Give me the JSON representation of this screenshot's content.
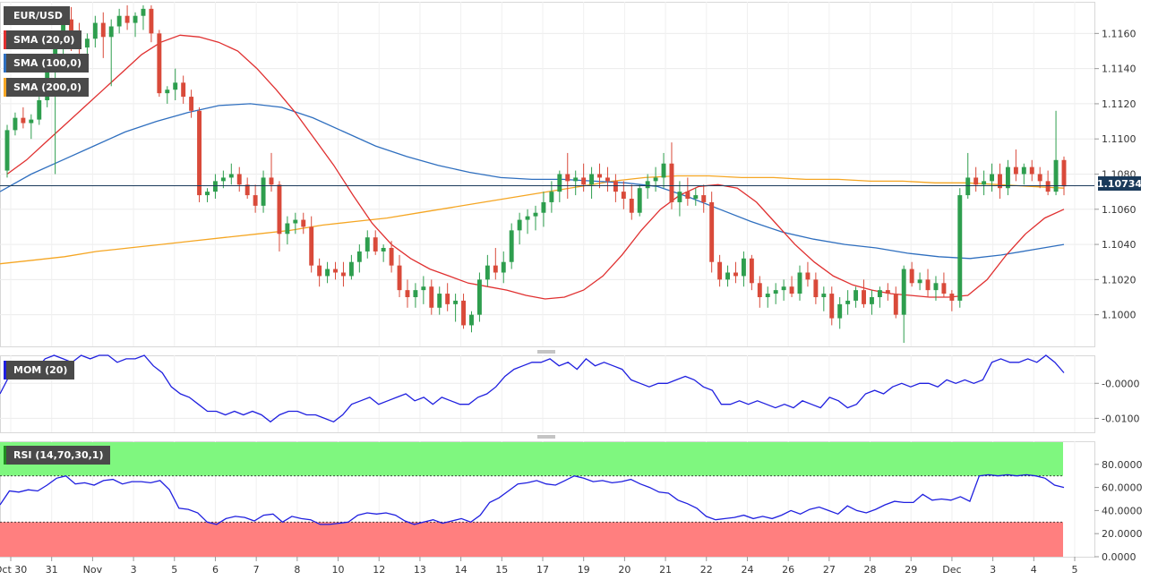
{
  "chart_data": [
    {
      "type": "candlestick",
      "title": "EUR/USD",
      "indicators": [
        {
          "name": "SMA (20,0)",
          "color": "#e03030"
        },
        {
          "name": "SMA (100,0)",
          "color": "#2f6fbf"
        },
        {
          "name": "SMA (200,0)",
          "color": "#f5a623"
        }
      ],
      "current_price": "1.10734",
      "ylim": [
        1.0982,
        1.1178
      ],
      "y_ticks": [
        "1.1160",
        "1.1140",
        "1.1120",
        "1.1100",
        "1.1080",
        "1.1060",
        "1.1040",
        "1.1020",
        "1.1000"
      ],
      "y_tick_values": [
        1.116,
        1.114,
        1.112,
        1.11,
        1.108,
        1.106,
        1.104,
        1.102,
        1.1
      ],
      "x_ticks": [
        "Oct 30",
        "31",
        "Nov",
        "3",
        "5",
        "6",
        "7",
        "8",
        "10",
        "12",
        "13",
        "14",
        "15",
        "17",
        "19",
        "20",
        "21",
        "22",
        "24",
        "26",
        "27",
        "28",
        "29",
        "Dec",
        "3",
        "4",
        "5"
      ],
      "candles_ohlc": [
        [
          1.1082,
          1.1108,
          1.1078,
          1.1105
        ],
        [
          1.1105,
          1.1115,
          1.1102,
          1.1112
        ],
        [
          1.1112,
          1.1118,
          1.1106,
          1.1109
        ],
        [
          1.1109,
          1.1114,
          1.11,
          1.1111
        ],
        [
          1.1111,
          1.1125,
          1.1108,
          1.1122
        ],
        [
          1.1122,
          1.114,
          1.1118,
          1.1138
        ],
        [
          1.1138,
          1.116,
          1.108,
          1.1152
        ],
        [
          1.1152,
          1.1172,
          1.1148,
          1.1168
        ],
        [
          1.1168,
          1.1175,
          1.115,
          1.1156
        ],
        [
          1.1156,
          1.1166,
          1.1148,
          1.1152
        ],
        [
          1.1152,
          1.116,
          1.1146,
          1.1157
        ],
        [
          1.1157,
          1.117,
          1.1152,
          1.1166
        ],
        [
          1.1166,
          1.1172,
          1.1146,
          1.1158
        ],
        [
          1.1158,
          1.1168,
          1.113,
          1.1164
        ],
        [
          1.1164,
          1.1174,
          1.116,
          1.117
        ],
        [
          1.117,
          1.1176,
          1.1162,
          1.1166
        ],
        [
          1.1166,
          1.1172,
          1.1158,
          1.117
        ],
        [
          1.117,
          1.1176,
          1.1162,
          1.1174
        ],
        [
          1.1174,
          1.1176,
          1.1155,
          1.116
        ],
        [
          1.116,
          1.1162,
          1.1124,
          1.1126
        ],
        [
          1.1126,
          1.113,
          1.112,
          1.1128
        ],
        [
          1.1128,
          1.114,
          1.1122,
          1.1132
        ],
        [
          1.1132,
          1.1136,
          1.112,
          1.1124
        ],
        [
          1.1124,
          1.1128,
          1.1112,
          1.1116
        ],
        [
          1.1116,
          1.1118,
          1.1064,
          1.1068
        ],
        [
          1.1068,
          1.1072,
          1.1064,
          1.107
        ],
        [
          1.107,
          1.108,
          1.1066,
          1.1076
        ],
        [
          1.1076,
          1.1082,
          1.1072,
          1.1078
        ],
        [
          1.1078,
          1.1086,
          1.1074,
          1.108
        ],
        [
          1.108,
          1.1084,
          1.107,
          1.1074
        ],
        [
          1.1074,
          1.1078,
          1.1066,
          1.1068
        ],
        [
          1.1068,
          1.1074,
          1.1058,
          1.1062
        ],
        [
          1.1062,
          1.1082,
          1.1058,
          1.1078
        ],
        [
          1.1078,
          1.1092,
          1.107,
          1.1074
        ],
        [
          1.1074,
          1.1076,
          1.1036,
          1.1046
        ],
        [
          1.1046,
          1.1056,
          1.104,
          1.1052
        ],
        [
          1.1052,
          1.1058,
          1.1046,
          1.1054
        ],
        [
          1.1054,
          1.1058,
          1.1046,
          1.105
        ],
        [
          1.105,
          1.1056,
          1.1024,
          1.1028
        ],
        [
          1.1028,
          1.1032,
          1.1016,
          1.1022
        ],
        [
          1.1022,
          1.103,
          1.1018,
          1.1026
        ],
        [
          1.1026,
          1.103,
          1.102,
          1.1024
        ],
        [
          1.1024,
          1.103,
          1.1016,
          1.1022
        ],
        [
          1.1022,
          1.1034,
          1.102,
          1.103
        ],
        [
          1.103,
          1.104,
          1.1024,
          1.1036
        ],
        [
          1.1036,
          1.1048,
          1.1032,
          1.1044
        ],
        [
          1.1044,
          1.1048,
          1.1034,
          1.1036
        ],
        [
          1.1036,
          1.104,
          1.103,
          1.1038
        ],
        [
          1.1038,
          1.1042,
          1.1024,
          1.1028
        ],
        [
          1.1028,
          1.1034,
          1.101,
          1.1014
        ],
        [
          1.1014,
          1.102,
          1.1004,
          1.101
        ],
        [
          1.101,
          1.1018,
          1.1004,
          1.1014
        ],
        [
          1.1014,
          1.1022,
          1.1006,
          1.1016
        ],
        [
          1.1016,
          1.102,
          1.1,
          1.1004
        ],
        [
          1.1004,
          1.1016,
          1.1,
          1.1012
        ],
        [
          1.1012,
          1.1018,
          1.1002,
          1.1006
        ],
        [
          1.1006,
          1.1012,
          1.0996,
          1.1008
        ],
        [
          1.1008,
          1.1012,
          1.0992,
          1.0994
        ],
        [
          1.0994,
          1.1002,
          1.099,
          1.1
        ],
        [
          1.1,
          1.1024,
          1.0996,
          1.102
        ],
        [
          1.102,
          1.1034,
          1.1016,
          1.1028
        ],
        [
          1.1028,
          1.1038,
          1.102,
          1.1024
        ],
        [
          1.1024,
          1.1036,
          1.1018,
          1.103
        ],
        [
          1.103,
          1.1052,
          1.1026,
          1.1048
        ],
        [
          1.1048,
          1.1058,
          1.104,
          1.1054
        ],
        [
          1.1054,
          1.106,
          1.1046,
          1.1056
        ],
        [
          1.1056,
          1.1062,
          1.1048,
          1.1058
        ],
        [
          1.1058,
          1.107,
          1.105,
          1.1064
        ],
        [
          1.1064,
          1.1076,
          1.1058,
          1.107
        ],
        [
          1.107,
          1.1082,
          1.1064,
          1.108
        ],
        [
          1.108,
          1.1092,
          1.1066,
          1.1076
        ],
        [
          1.1076,
          1.1082,
          1.1068,
          1.1078
        ],
        [
          1.1078,
          1.1086,
          1.107,
          1.1074
        ],
        [
          1.1074,
          1.1084,
          1.1066,
          1.108
        ],
        [
          1.108,
          1.1086,
          1.1072,
          1.1078
        ],
        [
          1.1078,
          1.1084,
          1.107,
          1.1076
        ],
        [
          1.1076,
          1.108,
          1.1064,
          1.107
        ],
        [
          1.107,
          1.1076,
          1.106,
          1.1066
        ],
        [
          1.1066,
          1.1074,
          1.1054,
          1.1058
        ],
        [
          1.1058,
          1.1074,
          1.1056,
          1.1072
        ],
        [
          1.1072,
          1.108,
          1.1066,
          1.1076
        ],
        [
          1.1076,
          1.1084,
          1.107,
          1.1078
        ],
        [
          1.1078,
          1.1092,
          1.1072,
          1.1086
        ],
        [
          1.1086,
          1.1098,
          1.106,
          1.1064
        ],
        [
          1.1064,
          1.1076,
          1.1056,
          1.107
        ],
        [
          1.107,
          1.1078,
          1.1062,
          1.1066
        ],
        [
          1.1066,
          1.1072,
          1.1062,
          1.1068
        ],
        [
          1.1068,
          1.1074,
          1.1058,
          1.1064
        ],
        [
          1.1064,
          1.107,
          1.1024,
          1.103
        ],
        [
          1.103,
          1.1034,
          1.1016,
          1.102
        ],
        [
          1.102,
          1.1028,
          1.1016,
          1.1024
        ],
        [
          1.1024,
          1.103,
          1.1018,
          1.1022
        ],
        [
          1.1022,
          1.1036,
          1.1016,
          1.1032
        ],
        [
          1.1032,
          1.1034,
          1.1014,
          1.1018
        ],
        [
          1.1018,
          1.1022,
          1.1004,
          1.101
        ],
        [
          1.101,
          1.1016,
          1.1004,
          1.1012
        ],
        [
          1.1012,
          1.1018,
          1.1006,
          1.1014
        ],
        [
          1.1014,
          1.102,
          1.1008,
          1.1016
        ],
        [
          1.1016,
          1.1022,
          1.101,
          1.1012
        ],
        [
          1.1012,
          1.1028,
          1.1008,
          1.1024
        ],
        [
          1.1024,
          1.103,
          1.1016,
          1.102
        ],
        [
          1.102,
          1.1024,
          1.1006,
          1.101
        ],
        [
          1.101,
          1.1016,
          1.1002,
          1.1012
        ],
        [
          1.1012,
          1.1016,
          1.0994,
          1.0998
        ],
        [
          1.0998,
          1.101,
          1.0992,
          1.1006
        ],
        [
          1.1006,
          1.1014,
          1.1,
          1.1008
        ],
        [
          1.1008,
          1.1016,
          1.1004,
          1.1014
        ],
        [
          1.1014,
          1.102,
          1.1004,
          1.1006
        ],
        [
          1.1006,
          1.1014,
          1.1,
          1.101
        ],
        [
          1.101,
          1.1016,
          1.1004,
          1.1014
        ],
        [
          1.1014,
          1.1018,
          1.1008,
          1.1012
        ],
        [
          1.1012,
          1.1016,
          1.0998,
          1.1
        ],
        [
          1.1,
          1.1028,
          1.0984,
          1.1026
        ],
        [
          1.1026,
          1.103,
          1.1016,
          1.1018
        ],
        [
          1.1018,
          1.1024,
          1.1014,
          1.102
        ],
        [
          1.102,
          1.1026,
          1.101,
          1.1014
        ],
        [
          1.1014,
          1.1022,
          1.1008,
          1.1018
        ],
        [
          1.1018,
          1.1024,
          1.101,
          1.1012
        ],
        [
          1.1012,
          1.1014,
          1.1002,
          1.1008
        ],
        [
          1.1008,
          1.1072,
          1.1004,
          1.1068
        ],
        [
          1.1068,
          1.1092,
          1.1066,
          1.1078
        ],
        [
          1.1078,
          1.1084,
          1.107,
          1.1074
        ],
        [
          1.1074,
          1.1082,
          1.1068,
          1.1076
        ],
        [
          1.1076,
          1.1086,
          1.107,
          1.108
        ],
        [
          1.108,
          1.1086,
          1.1066,
          1.1072
        ],
        [
          1.1072,
          1.1088,
          1.1068,
          1.1084
        ],
        [
          1.1084,
          1.1094,
          1.1076,
          1.108
        ],
        [
          1.108,
          1.1086,
          1.1074,
          1.1084
        ],
        [
          1.1084,
          1.1088,
          1.1076,
          1.108
        ],
        [
          1.108,
          1.1084,
          1.1072,
          1.1076
        ],
        [
          1.1076,
          1.1082,
          1.1068,
          1.107
        ],
        [
          1.107,
          1.1116,
          1.1068,
          1.1088
        ],
        [
          1.1088,
          1.109,
          1.1068,
          1.1073
        ]
      ],
      "sma20": [
        1.108,
        1.1088,
        1.1098,
        1.1108,
        1.1118,
        1.1128,
        1.1138,
        1.1148,
        1.1155,
        1.1159,
        1.1158,
        1.1155,
        1.115,
        1.114,
        1.1128,
        1.1115,
        1.11,
        1.1085,
        1.1068,
        1.1052,
        1.104,
        1.1032,
        1.1026,
        1.1022,
        1.1018,
        1.1016,
        1.1014,
        1.1011,
        1.1009,
        1.101,
        1.1014,
        1.1022,
        1.1034,
        1.1048,
        1.106,
        1.1068,
        1.1073,
        1.1074,
        1.1072,
        1.1064,
        1.1052,
        1.104,
        1.103,
        1.1022,
        1.1017,
        1.1014,
        1.1012,
        1.1011,
        1.101,
        1.101,
        1.1011,
        1.102,
        1.1034,
        1.1046,
        1.1055,
        1.106
      ],
      "sma100": [
        1.107,
        1.108,
        1.1088,
        1.1096,
        1.1104,
        1.111,
        1.1115,
        1.1119,
        1.112,
        1.1118,
        1.1112,
        1.1104,
        1.1096,
        1.109,
        1.1085,
        1.1081,
        1.1078,
        1.1077,
        1.1077,
        1.1076,
        1.1075,
        1.1073,
        1.1067,
        1.106,
        1.1053,
        1.1047,
        1.1043,
        1.104,
        1.1038,
        1.1035,
        1.1033,
        1.1032,
        1.1034,
        1.1037,
        1.104
      ],
      "sma200": [
        1.1029,
        1.1031,
        1.1033,
        1.1036,
        1.1038,
        1.104,
        1.1042,
        1.1044,
        1.1046,
        1.1048,
        1.1051,
        1.1053,
        1.1055,
        1.1058,
        1.1061,
        1.1064,
        1.1067,
        1.107,
        1.1073,
        1.1076,
        1.1078,
        1.1079,
        1.1079,
        1.1078,
        1.1078,
        1.1077,
        1.1077,
        1.1076,
        1.1076,
        1.1075,
        1.1075,
        1.1074,
        1.1073,
        1.1072
      ]
    },
    {
      "type": "line",
      "title": "MOM (20)",
      "ylim": [
        -0.014,
        0.008
      ],
      "y_ticks": [
        "-0.0000",
        "-0.0100"
      ],
      "y_tick_values": [
        0.0,
        -0.01
      ],
      "values": [
        -0.003,
        0.002,
        0.005,
        0.006,
        0.004,
        0.007,
        0.008,
        0.007,
        0.006,
        0.008,
        0.007,
        0.008,
        0.008,
        0.006,
        0.007,
        0.007,
        0.008,
        0.005,
        0.003,
        -0.001,
        -0.003,
        -0.004,
        -0.006,
        -0.008,
        -0.008,
        -0.009,
        -0.008,
        -0.009,
        -0.008,
        -0.009,
        -0.011,
        -0.009,
        -0.008,
        -0.008,
        -0.009,
        -0.009,
        -0.01,
        -0.011,
        -0.009,
        -0.006,
        -0.005,
        -0.004,
        -0.006,
        -0.005,
        -0.004,
        -0.003,
        -0.005,
        -0.004,
        -0.006,
        -0.004,
        -0.005,
        -0.006,
        -0.006,
        -0.004,
        -0.003,
        -0.001,
        0.002,
        0.004,
        0.005,
        0.006,
        0.006,
        0.007,
        0.005,
        0.006,
        0.004,
        0.007,
        0.005,
        0.006,
        0.005,
        0.004,
        0.001,
        0.0,
        -0.001,
        0.0,
        0.0,
        0.001,
        0.002,
        0.001,
        -0.001,
        -0.002,
        -0.006,
        -0.006,
        -0.005,
        -0.006,
        -0.005,
        -0.006,
        -0.007,
        -0.006,
        -0.007,
        -0.005,
        -0.006,
        -0.007,
        -0.004,
        -0.005,
        -0.007,
        -0.006,
        -0.003,
        -0.002,
        -0.003,
        -0.001,
        0.0,
        -0.001,
        0.0,
        0.0,
        -0.001,
        0.001,
        0.0,
        0.001,
        0.0,
        0.001,
        0.006,
        0.007,
        0.006,
        0.006,
        0.007,
        0.006,
        0.008,
        0.006,
        0.003
      ],
      "series_color": "#1f1fdf"
    },
    {
      "type": "line",
      "title": "RSI (14,70,30,1)",
      "ylim": [
        0,
        100
      ],
      "y_ticks": [
        "80.0000",
        "60.0000",
        "40.0000",
        "20.0000",
        "0.0000"
      ],
      "y_tick_values": [
        80,
        60,
        40,
        20,
        0
      ],
      "overbought": 70,
      "oversold": 30,
      "values": [
        45,
        57,
        56,
        58,
        57,
        62,
        68,
        70,
        63,
        64,
        62,
        66,
        67,
        63,
        65,
        65,
        64,
        66,
        58,
        42,
        41,
        38,
        30,
        28,
        33,
        35,
        34,
        31,
        36,
        37,
        30,
        35,
        33,
        32,
        28,
        28,
        29,
        30,
        36,
        38,
        37,
        38,
        36,
        31,
        28,
        30,
        32,
        29,
        31,
        33,
        30,
        36,
        47,
        51,
        57,
        63,
        64,
        66,
        63,
        62,
        66,
        70,
        68,
        65,
        66,
        64,
        65,
        67,
        63,
        60,
        56,
        55,
        49,
        46,
        42,
        35,
        32,
        33,
        34,
        36,
        33,
        35,
        33,
        36,
        40,
        37,
        41,
        43,
        40,
        37,
        44,
        40,
        38,
        41,
        45,
        48,
        47,
        47,
        54,
        49,
        50,
        49,
        52,
        48,
        70,
        71,
        70,
        71,
        70,
        71,
        70,
        68,
        62,
        60
      ],
      "series_color": "#1f1fdf",
      "overbought_color": "#7ff77f",
      "oversold_color": "#ff7f7f"
    }
  ],
  "labels": {
    "symbol": "EUR/USD",
    "sma20": "SMA (20,0)",
    "sma100": "SMA (100,0)",
    "sma200": "SMA (200,0)",
    "mom": "MOM (20)",
    "rsi": "RSI (14,70,30,1)",
    "price": "1.10734"
  },
  "colors": {
    "bull": "#2e9e4e",
    "bear": "#d94a3a",
    "sma20": "#e03030",
    "sma100": "#2f6fbf",
    "sma200": "#f5a623",
    "price_line": "#1a3a5a",
    "mom_line": "#1f1fdf",
    "rsi_line": "#1f1fdf"
  }
}
